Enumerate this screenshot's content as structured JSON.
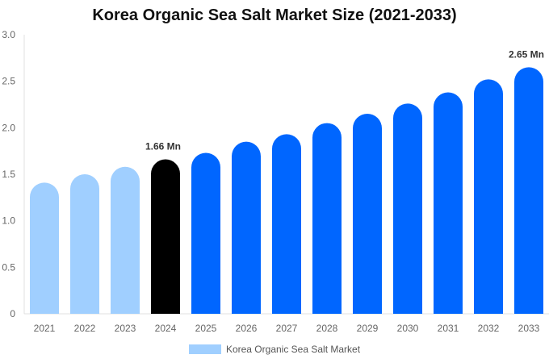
{
  "chart_data": {
    "type": "bar",
    "title": "Korea Organic Sea Salt Market Size (2021-2033)",
    "categories": [
      "2021",
      "2022",
      "2023",
      "2024",
      "2025",
      "2026",
      "2027",
      "2028",
      "2029",
      "2030",
      "2031",
      "2032",
      "2033"
    ],
    "series": [
      {
        "name": "Korea Organic Sea Salt Market",
        "values": [
          1.41,
          1.5,
          1.58,
          1.66,
          1.73,
          1.85,
          1.93,
          2.05,
          2.15,
          2.26,
          2.38,
          2.52,
          2.65
        ]
      }
    ],
    "data_labels": {
      "2024": "1.66 Mn",
      "2033": "2.65 Mn"
    },
    "ylim": [
      0,
      3.0
    ],
    "yticks": [
      "0",
      "0.5",
      "1.0",
      "1.5",
      "2.0",
      "2.5",
      "3.0"
    ],
    "xlabel": "",
    "ylabel": "",
    "grid": false,
    "legend": "bottom",
    "colors": {
      "historical": "#a0cfff",
      "base_year": "#000000",
      "forecast": "#0066ff"
    }
  }
}
